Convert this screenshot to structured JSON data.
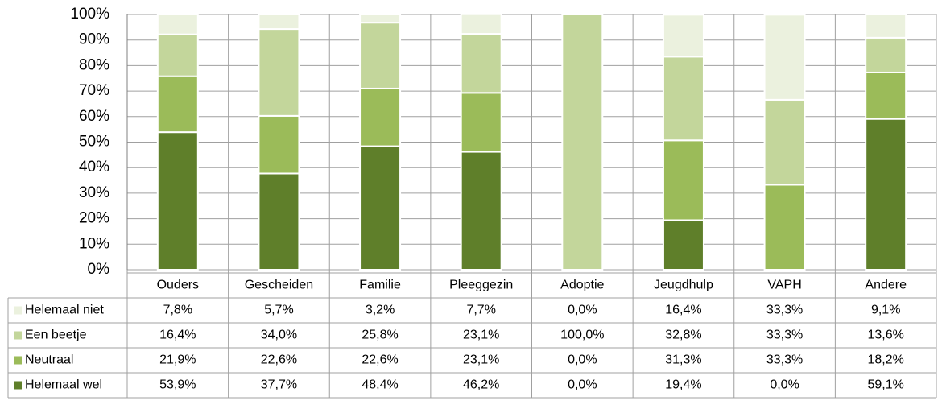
{
  "chart_data": {
    "type": "stacked_bar",
    "categories": [
      "Ouders",
      "Gescheiden",
      "Familie",
      "Pleeggezin",
      "Adoptie",
      "Jeugdhulp",
      "VAPH",
      "Andere"
    ],
    "series": [
      {
        "name": "Helemaal niet",
        "color": "#ebf1de",
        "values": [
          7.8,
          5.7,
          3.2,
          7.7,
          0.0,
          16.4,
          33.3,
          9.1
        ],
        "value_labels": [
          "7,8%",
          "5,7%",
          "3,2%",
          "7,7%",
          "0,0%",
          "16,4%",
          "33,3%",
          "9,1%"
        ]
      },
      {
        "name": "Een beetje",
        "color": "#c3d69b",
        "values": [
          16.4,
          34.0,
          25.8,
          23.1,
          100.0,
          32.8,
          33.3,
          13.6
        ],
        "value_labels": [
          "16,4%",
          "34,0%",
          "25,8%",
          "23,1%",
          "100,0%",
          "32,8%",
          "33,3%",
          "13,6%"
        ]
      },
      {
        "name": "Neutraal",
        "color": "#9bbb59",
        "values": [
          21.9,
          22.6,
          22.6,
          23.1,
          0.0,
          31.3,
          33.3,
          18.2
        ],
        "value_labels": [
          "21,9%",
          "22,6%",
          "22,6%",
          "23,1%",
          "0,0%",
          "31,3%",
          "33,3%",
          "18,2%"
        ]
      },
      {
        "name": "Helemaal wel",
        "color": "#5f7f2a",
        "values": [
          53.9,
          37.7,
          48.4,
          46.2,
          0.0,
          19.4,
          0.0,
          59.1
        ],
        "value_labels": [
          "53,9%",
          "37,7%",
          "48,4%",
          "46,2%",
          "0,0%",
          "19,4%",
          "0,0%",
          "59,1%"
        ]
      }
    ],
    "ylim": [
      0,
      100
    ],
    "yticks": [
      {
        "value": 0,
        "label": "0%"
      },
      {
        "value": 10,
        "label": "10%"
      },
      {
        "value": 20,
        "label": "20%"
      },
      {
        "value": 30,
        "label": "30%"
      },
      {
        "value": 40,
        "label": "40%"
      },
      {
        "value": 50,
        "label": "50%"
      },
      {
        "value": 60,
        "label": "60%"
      },
      {
        "value": 70,
        "label": "70%"
      },
      {
        "value": 80,
        "label": "80%"
      },
      {
        "value": 90,
        "label": "90%"
      },
      {
        "value": 100,
        "label": "100%"
      }
    ],
    "grid": true
  }
}
